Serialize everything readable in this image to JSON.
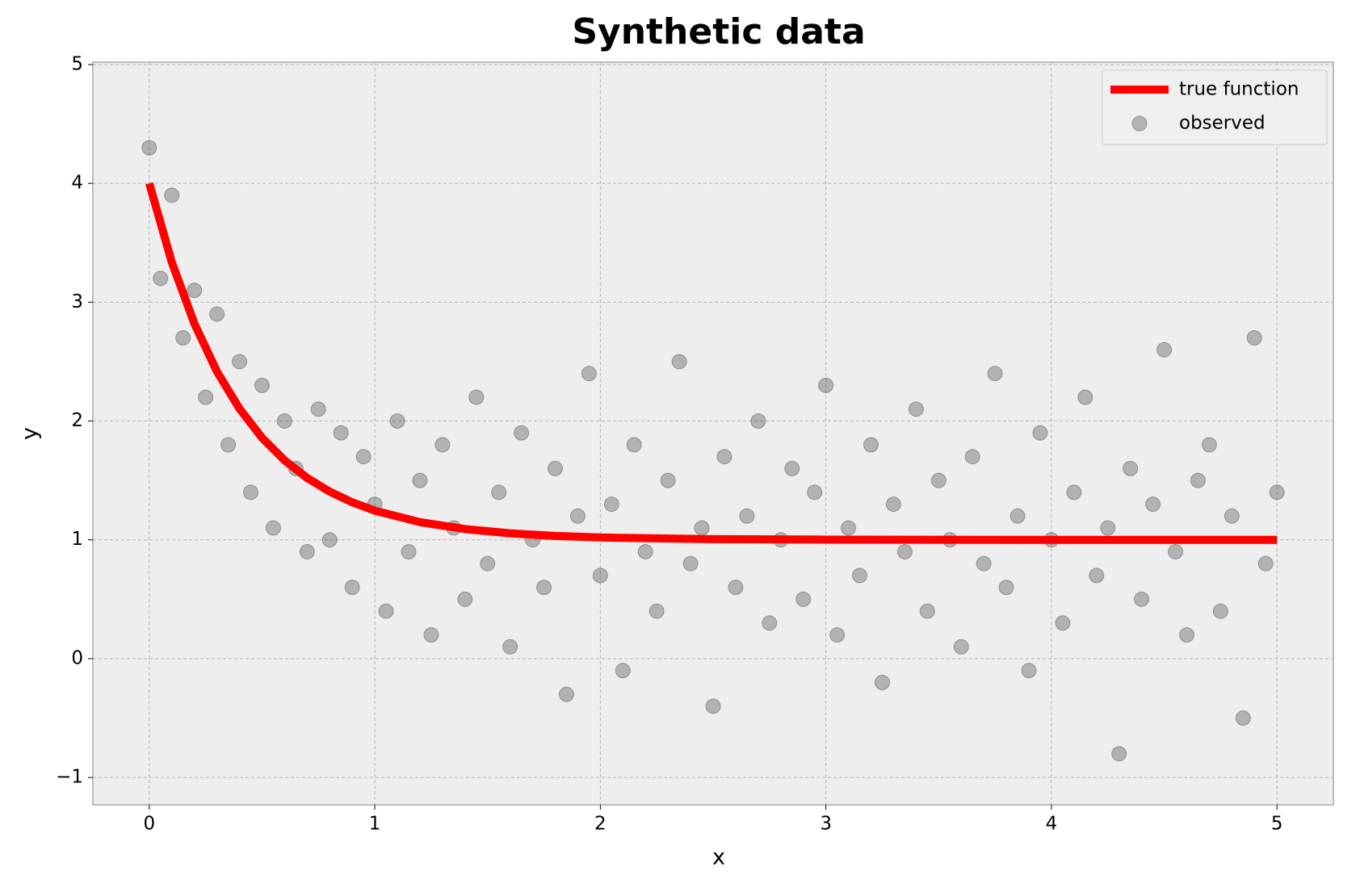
{
  "chart_data": {
    "type": "scatter",
    "title": "Synthetic data",
    "x_label": "x",
    "y_label": "y",
    "xlim": [
      -0.25,
      5.25
    ],
    "ylim": [
      -1.23,
      5.02
    ],
    "xticks": [
      0,
      1,
      2,
      3,
      4,
      5
    ],
    "yticks": [
      {
        "value": -1,
        "label": "−1"
      },
      0,
      1,
      2,
      3,
      4,
      5
    ],
    "grid": true,
    "legend": "upper right",
    "series": [
      {
        "name": "true function",
        "type": "line",
        "color": "#ff0000",
        "x": [
          0,
          0.1,
          0.2,
          0.3,
          0.4,
          0.5,
          0.6,
          0.7,
          0.8,
          0.9,
          1.0,
          1.2,
          1.4,
          1.6,
          1.8,
          2.0,
          2.5,
          3,
          4,
          5
        ],
        "values": [
          4,
          3.336,
          2.82,
          2.417,
          2.104,
          1.859,
          1.669,
          1.521,
          1.406,
          1.316,
          1.246,
          1.149,
          1.091,
          1.055,
          1.033,
          1.02,
          1.006,
          1.002,
          1.0,
          1.0
        ]
      },
      {
        "name": "observed",
        "type": "scatter",
        "color": "#000000",
        "x": [
          0,
          0.05,
          0.1,
          0.15,
          0.2,
          0.25,
          0.3,
          0.35,
          0.4,
          0.45,
          0.5,
          0.55,
          0.6,
          0.65,
          0.7,
          0.75,
          0.8,
          0.85,
          0.9,
          0.95,
          1.0,
          1.05,
          1.1,
          1.15,
          1.2,
          1.25,
          1.3,
          1.35,
          1.4,
          1.45,
          1.5,
          1.55,
          1.6,
          1.65,
          1.7,
          1.75,
          1.8,
          1.85,
          1.9,
          1.95,
          2.0,
          2.05,
          2.1,
          2.15,
          2.2,
          2.25,
          2.3,
          2.35,
          2.4,
          2.45,
          2.5,
          2.55,
          2.6,
          2.65,
          2.7,
          2.75,
          2.8,
          2.85,
          2.9,
          2.95,
          3.0,
          3.05,
          3.1,
          3.15,
          3.2,
          3.25,
          3.3,
          3.35,
          3.4,
          3.45,
          3.5,
          3.55,
          3.6,
          3.65,
          3.7,
          3.75,
          3.8,
          3.85,
          3.9,
          3.95,
          4.0,
          4.05,
          4.1,
          4.15,
          4.2,
          4.25,
          4.3,
          4.35,
          4.4,
          4.45,
          4.5,
          4.55,
          4.6,
          4.65,
          4.7,
          4.75,
          4.8,
          4.85,
          4.9,
          4.95,
          5.0
        ],
        "values": [
          4.3,
          3.2,
          3.9,
          2.7,
          3.1,
          2.2,
          2.9,
          1.8,
          2.5,
          1.4,
          2.3,
          1.1,
          2.0,
          1.6,
          0.9,
          2.1,
          1.0,
          1.9,
          0.6,
          1.7,
          1.3,
          0.4,
          2.0,
          0.9,
          1.5,
          0.2,
          1.8,
          1.1,
          0.5,
          2.2,
          0.8,
          1.4,
          0.1,
          1.9,
          1.0,
          0.6,
          1.6,
          -0.3,
          1.2,
          2.4,
          0.7,
          1.3,
          -0.1,
          1.8,
          0.9,
          0.4,
          1.5,
          2.5,
          0.8,
          1.1,
          -0.4,
          1.7,
          0.6,
          1.2,
          2.0,
          0.3,
          1.0,
          1.6,
          0.5,
          1.4,
          2.3,
          0.2,
          1.1,
          0.7,
          1.8,
          -0.2,
          1.3,
          0.9,
          2.1,
          0.4,
          1.5,
          1.0,
          0.1,
          1.7,
          0.8,
          2.4,
          0.6,
          1.2,
          -0.1,
          1.9,
          1.0,
          0.3,
          1.4,
          2.2,
          0.7,
          1.1,
          -0.8,
          1.6,
          0.5,
          1.3,
          2.6,
          0.9,
          0.2,
          1.5,
          1.8,
          0.4,
          1.2,
          -0.5,
          2.7,
          0.8,
          1.4
        ]
      }
    ]
  }
}
